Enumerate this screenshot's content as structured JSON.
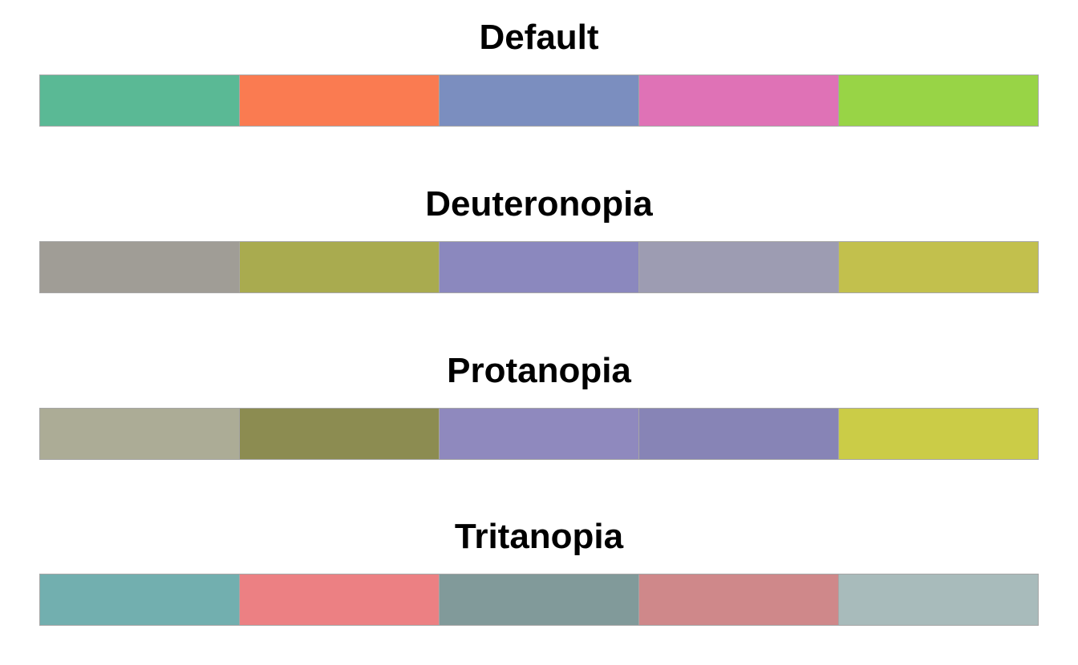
{
  "chart_data": {
    "type": "palette",
    "panels": [
      {
        "title": "Default",
        "colors": [
          "#5ab995",
          "#fa7b51",
          "#7b8ebf",
          "#df72b6",
          "#98d446"
        ]
      },
      {
        "title": "Deuteronopia",
        "colors": [
          "#a09d96",
          "#a9ab4f",
          "#8b88be",
          "#9d9cb2",
          "#c2c04d"
        ]
      },
      {
        "title": "Protanopia",
        "colors": [
          "#acac96",
          "#8c8c51",
          "#8f89be",
          "#8784b6",
          "#cbcc47"
        ]
      },
      {
        "title": "Tritanopia",
        "colors": [
          "#72afaf",
          "#ec8083",
          "#819a9a",
          "#cf888a",
          "#a8bbbb"
        ]
      }
    ],
    "swatch_border_color": "#a6a6a6"
  }
}
